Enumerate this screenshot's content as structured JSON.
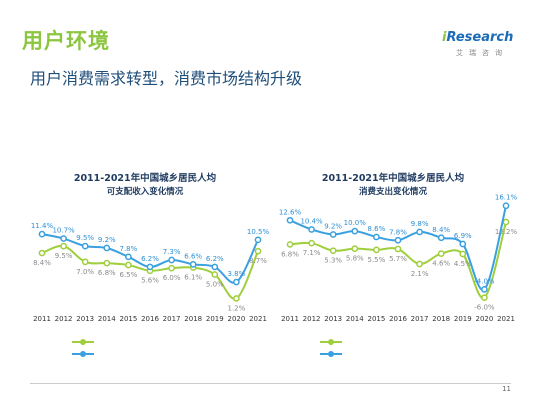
{
  "header": {
    "title": "用户环境",
    "subtitle": "用户消费需求转型，消费市场结构升级",
    "brand_name_i": "i",
    "brand_name_rest": "Research",
    "brand_sub": "艾瑞咨询"
  },
  "body_text": "",
  "colors": {
    "income_line": "#9fcf3c",
    "growth_line": "#3aa0e0",
    "label_income": "#8a8a8a",
    "label_growth": "#2e8fd6"
  },
  "chart_data": [
    {
      "type": "line",
      "title": "2011-2021年中国城乡居民人均",
      "subtitle": "可支配收入变化情况",
      "categories": [
        "2011",
        "2012",
        "2013",
        "2014",
        "2015",
        "2016",
        "2017",
        "2018",
        "2019",
        "2020",
        "2021"
      ],
      "series": [
        {
          "name": "",
          "values": [
            8.4,
            9.5,
            7.0,
            6.8,
            6.5,
            5.6,
            6.0,
            6.1,
            5.0,
            1.2,
            8.7
          ]
        },
        {
          "name": "",
          "values": [
            11.4,
            10.7,
            9.5,
            9.2,
            7.8,
            6.2,
            7.3,
            6.6,
            6.2,
            3.8,
            10.5
          ]
        }
      ],
      "ylim": [
        0,
        16.5
      ]
    },
    {
      "type": "line",
      "title": "2011-2021年中国城乡居民人均",
      "subtitle": "消费支出变化情况",
      "categories": [
        "2011",
        "2012",
        "2013",
        "2014",
        "2015",
        "2016",
        "2017",
        "2018",
        "2019",
        "2020",
        "2021"
      ],
      "series": [
        {
          "name": "",
          "values": [
            6.8,
            7.1,
            5.3,
            5.8,
            5.5,
            5.7,
            2.1,
            4.6,
            4.5,
            -6.0,
            12.2
          ]
        },
        {
          "name": "",
          "values": [
            12.6,
            10.4,
            9.2,
            10.0,
            8.6,
            7.8,
            9.8,
            8.4,
            6.9,
            -4.0,
            16.1
          ]
        }
      ],
      "ylim": [
        -8,
        17
      ]
    }
  ],
  "sources": [
    "",
    ""
  ],
  "footer": {
    "copyright": "",
    "site_a": "",
    "site_b": "",
    "page": "11"
  }
}
